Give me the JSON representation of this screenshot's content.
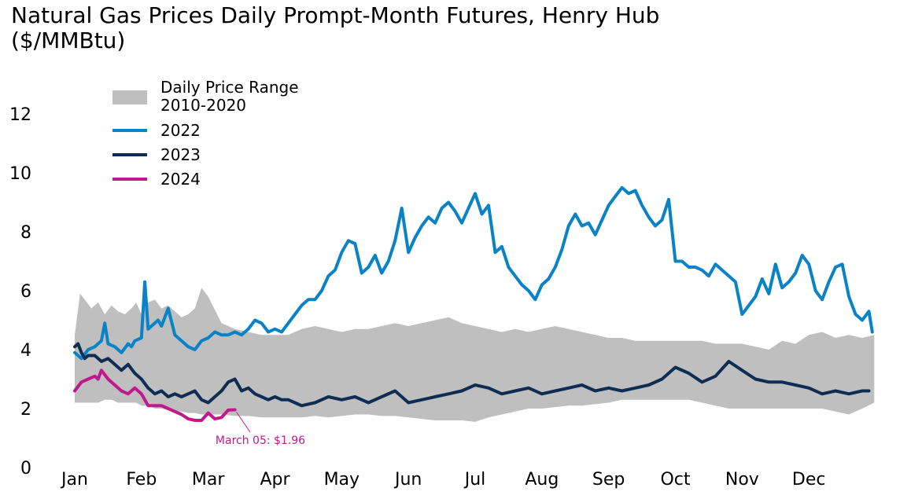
{
  "title_line1": "Natural Gas Prices Daily Prompt-Month Futures, Henry Hub",
  "title_line2": "($/MMBtu)",
  "chart_data": {
    "type": "line",
    "x_axis": {
      "labels": [
        "Jan",
        "Feb",
        "Mar",
        "Apr",
        "May",
        "Jun",
        "Jul",
        "Aug",
        "Sep",
        "Oct",
        "Nov",
        "Dec"
      ],
      "range": [
        0,
        12
      ]
    },
    "y_axis": {
      "ticks": [
        0,
        2,
        4,
        6,
        8,
        10,
        12
      ],
      "range": [
        0,
        13
      ]
    },
    "grid": false,
    "legend_position": "top-left",
    "band": {
      "name": "Daily Price Range 2010-2020",
      "name_lines": [
        "Daily Price Range",
        "2010-2020"
      ],
      "color": "#bfbfbf",
      "x": [
        0.0,
        0.08,
        0.15,
        0.25,
        0.35,
        0.45,
        0.55,
        0.65,
        0.75,
        0.85,
        0.92,
        1.0,
        1.1,
        1.2,
        1.3,
        1.4,
        1.5,
        1.6,
        1.7,
        1.8,
        1.9,
        2.0,
        2.2,
        2.4,
        2.6,
        2.8,
        3.0,
        3.2,
        3.4,
        3.6,
        3.8,
        4.0,
        4.2,
        4.4,
        4.6,
        4.8,
        5.0,
        5.2,
        5.4,
        5.6,
        5.8,
        6.0,
        6.2,
        6.4,
        6.6,
        6.8,
        7.0,
        7.2,
        7.4,
        7.6,
        7.8,
        8.0,
        8.2,
        8.4,
        8.6,
        8.8,
        9.0,
        9.2,
        9.4,
        9.6,
        9.8,
        10.0,
        10.2,
        10.4,
        10.6,
        10.8,
        11.0,
        11.2,
        11.4,
        11.6,
        11.8,
        11.98
      ],
      "low": [
        2.2,
        2.2,
        2.2,
        2.2,
        2.2,
        2.3,
        2.3,
        2.2,
        2.2,
        2.2,
        2.2,
        2.1,
        2.1,
        2.0,
        2.0,
        1.95,
        1.9,
        1.9,
        1.85,
        1.85,
        1.8,
        1.8,
        1.8,
        1.75,
        1.75,
        1.7,
        1.7,
        1.7,
        1.7,
        1.75,
        1.7,
        1.75,
        1.8,
        1.8,
        1.75,
        1.75,
        1.7,
        1.65,
        1.6,
        1.6,
        1.6,
        1.55,
        1.7,
        1.8,
        1.9,
        2.0,
        2.0,
        2.05,
        2.1,
        2.1,
        2.15,
        2.2,
        2.3,
        2.3,
        2.3,
        2.3,
        2.3,
        2.3,
        2.2,
        2.1,
        2.0,
        2.0,
        2.0,
        2.0,
        2.0,
        2.0,
        2.0,
        2.0,
        1.9,
        1.8,
        2.0,
        2.2
      ],
      "high": [
        4.5,
        5.9,
        5.7,
        5.4,
        5.6,
        5.2,
        5.5,
        5.3,
        5.2,
        5.4,
        5.6,
        5.2,
        5.6,
        5.7,
        5.4,
        5.5,
        5.3,
        5.1,
        5.2,
        5.4,
        6.1,
        5.8,
        4.9,
        4.7,
        4.6,
        4.5,
        4.5,
        4.5,
        4.7,
        4.8,
        4.7,
        4.6,
        4.7,
        4.7,
        4.8,
        4.9,
        4.8,
        4.9,
        5.0,
        5.1,
        4.9,
        4.8,
        4.7,
        4.6,
        4.7,
        4.6,
        4.7,
        4.8,
        4.7,
        4.6,
        4.5,
        4.4,
        4.4,
        4.3,
        4.3,
        4.3,
        4.3,
        4.3,
        4.3,
        4.2,
        4.2,
        4.2,
        4.1,
        4.0,
        4.3,
        4.2,
        4.5,
        4.6,
        4.4,
        4.5,
        4.4,
        4.5
      ]
    },
    "series": [
      {
        "name": "2022",
        "color": "#0a82c8",
        "x": [
          0.0,
          0.1,
          0.2,
          0.3,
          0.4,
          0.45,
          0.5,
          0.6,
          0.7,
          0.8,
          0.85,
          0.9,
          1.0,
          1.05,
          1.1,
          1.2,
          1.25,
          1.3,
          1.4,
          1.5,
          1.6,
          1.7,
          1.8,
          1.9,
          2.0,
          2.1,
          2.2,
          2.3,
          2.4,
          2.5,
          2.6,
          2.7,
          2.8,
          2.9,
          3.0,
          3.1,
          3.2,
          3.3,
          3.4,
          3.5,
          3.6,
          3.7,
          3.8,
          3.9,
          4.0,
          4.1,
          4.2,
          4.3,
          4.4,
          4.5,
          4.6,
          4.7,
          4.8,
          4.9,
          5.0,
          5.1,
          5.2,
          5.3,
          5.4,
          5.5,
          5.6,
          5.7,
          5.8,
          5.9,
          6.0,
          6.1,
          6.2,
          6.3,
          6.4,
          6.5,
          6.6,
          6.7,
          6.8,
          6.9,
          7.0,
          7.1,
          7.2,
          7.3,
          7.4,
          7.5,
          7.6,
          7.7,
          7.8,
          7.9,
          8.0,
          8.1,
          8.2,
          8.3,
          8.4,
          8.5,
          8.6,
          8.7,
          8.8,
          8.9,
          9.0,
          9.1,
          9.2,
          9.3,
          9.4,
          9.5,
          9.6,
          9.7,
          9.8,
          9.9,
          10.0,
          10.1,
          10.2,
          10.3,
          10.4,
          10.5,
          10.6,
          10.7,
          10.8,
          10.9,
          11.0,
          11.1,
          11.2,
          11.3,
          11.4,
          11.5,
          11.6,
          11.7,
          11.8,
          11.9,
          11.95
        ],
        "y": [
          3.9,
          3.7,
          4.0,
          4.1,
          4.3,
          4.9,
          4.2,
          4.1,
          3.9,
          4.2,
          4.1,
          4.3,
          4.4,
          6.3,
          4.7,
          4.9,
          5.0,
          4.8,
          5.4,
          4.5,
          4.3,
          4.1,
          4.0,
          4.3,
          4.4,
          4.6,
          4.5,
          4.5,
          4.6,
          4.5,
          4.7,
          5.0,
          4.9,
          4.6,
          4.7,
          4.6,
          4.9,
          5.2,
          5.5,
          5.7,
          5.7,
          6.0,
          6.5,
          6.7,
          7.3,
          7.7,
          7.6,
          6.6,
          6.8,
          7.2,
          6.6,
          7.0,
          7.7,
          8.8,
          7.3,
          7.8,
          8.2,
          8.5,
          8.3,
          8.8,
          9.0,
          8.7,
          8.3,
          8.8,
          9.3,
          8.6,
          8.9,
          7.3,
          7.5,
          6.8,
          6.5,
          6.2,
          6.0,
          5.7,
          6.2,
          6.4,
          6.8,
          7.4,
          8.2,
          8.6,
          8.2,
          8.3,
          7.9,
          8.4,
          8.9,
          9.2,
          9.5,
          9.3,
          9.4,
          8.9,
          8.5,
          8.2,
          8.4,
          9.1,
          7.0,
          7.0,
          6.8,
          6.8,
          6.7,
          6.5,
          6.9,
          6.7,
          6.5,
          6.3,
          5.2,
          5.5,
          5.8,
          6.4,
          5.9,
          6.9,
          6.1,
          6.3,
          6.6,
          7.2,
          6.9,
          6.0,
          5.7,
          6.3,
          6.8,
          6.9,
          5.8,
          5.2,
          5.0,
          5.3,
          4.6
        ]
      },
      {
        "name": "2023",
        "color": "#0d2d52",
        "x": [
          0.0,
          0.05,
          0.1,
          0.15,
          0.2,
          0.3,
          0.4,
          0.5,
          0.6,
          0.7,
          0.8,
          0.9,
          1.0,
          1.1,
          1.2,
          1.3,
          1.4,
          1.5,
          1.6,
          1.7,
          1.8,
          1.9,
          2.0,
          2.1,
          2.2,
          2.3,
          2.4,
          2.5,
          2.6,
          2.7,
          2.8,
          2.9,
          3.0,
          3.1,
          3.2,
          3.3,
          3.4,
          3.6,
          3.8,
          4.0,
          4.2,
          4.4,
          4.6,
          4.8,
          5.0,
          5.2,
          5.4,
          5.6,
          5.8,
          6.0,
          6.2,
          6.4,
          6.6,
          6.8,
          7.0,
          7.2,
          7.4,
          7.6,
          7.8,
          8.0,
          8.2,
          8.4,
          8.6,
          8.8,
          9.0,
          9.2,
          9.4,
          9.6,
          9.8,
          10.0,
          10.2,
          10.4,
          10.6,
          10.8,
          11.0,
          11.2,
          11.4,
          11.6,
          11.8,
          11.9
        ],
        "y": [
          4.1,
          4.2,
          3.9,
          3.7,
          3.8,
          3.8,
          3.6,
          3.7,
          3.5,
          3.3,
          3.5,
          3.2,
          3.0,
          2.7,
          2.5,
          2.6,
          2.4,
          2.5,
          2.4,
          2.5,
          2.6,
          2.3,
          2.2,
          2.4,
          2.6,
          2.9,
          3.0,
          2.6,
          2.7,
          2.5,
          2.4,
          2.3,
          2.4,
          2.3,
          2.3,
          2.2,
          2.1,
          2.2,
          2.4,
          2.3,
          2.4,
          2.2,
          2.4,
          2.6,
          2.2,
          2.3,
          2.4,
          2.5,
          2.6,
          2.8,
          2.7,
          2.5,
          2.6,
          2.7,
          2.5,
          2.6,
          2.7,
          2.8,
          2.6,
          2.7,
          2.6,
          2.7,
          2.8,
          3.0,
          3.4,
          3.2,
          2.9,
          3.1,
          3.6,
          3.3,
          3.0,
          2.9,
          2.9,
          2.8,
          2.7,
          2.5,
          2.6,
          2.5,
          2.6,
          2.6
        ]
      },
      {
        "name": "2024",
        "color": "#c0198c",
        "x": [
          0.0,
          0.1,
          0.2,
          0.3,
          0.35,
          0.4,
          0.5,
          0.6,
          0.7,
          0.8,
          0.9,
          1.0,
          1.1,
          1.2,
          1.3,
          1.4,
          1.5,
          1.6,
          1.7,
          1.8,
          1.9,
          2.0,
          2.1,
          2.2,
          2.3,
          2.4
        ],
        "y": [
          2.6,
          2.9,
          3.0,
          3.1,
          3.0,
          3.3,
          3.0,
          2.8,
          2.6,
          2.5,
          2.7,
          2.5,
          2.1,
          2.1,
          2.1,
          2.0,
          1.9,
          1.8,
          1.65,
          1.6,
          1.6,
          1.85,
          1.65,
          1.7,
          1.95,
          1.96
        ]
      }
    ],
    "annotation": {
      "text": "March 05: $1.96",
      "x": 2.4,
      "y": 1.96,
      "color": "#c0198c"
    }
  }
}
